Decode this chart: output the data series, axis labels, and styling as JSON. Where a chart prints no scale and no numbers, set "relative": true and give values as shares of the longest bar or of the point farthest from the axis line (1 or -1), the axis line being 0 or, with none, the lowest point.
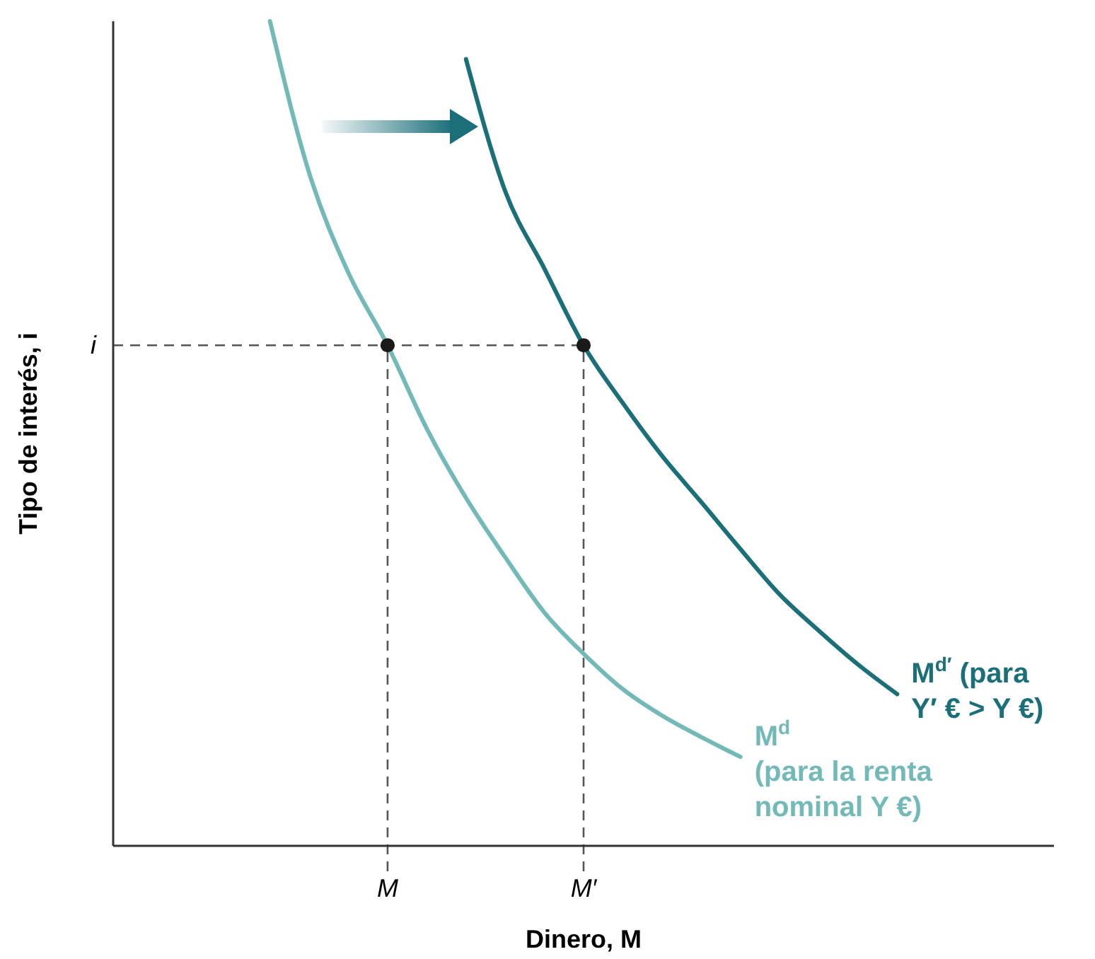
{
  "chart_data": {
    "type": "line",
    "relative": true,
    "xlabel": "Dinero, M",
    "ylabel": "Tipo de interés, i",
    "categories": [
      null,
      null,
      null,
      null,
      null,
      null,
      "M",
      null,
      null,
      null,
      null,
      "M′",
      null,
      null,
      null,
      null,
      null,
      null,
      null,
      null,
      null,
      null,
      null
    ],
    "series": [
      {
        "name": "M$^{d}$\n(para la renta\nnominal Y €)",
        "color": "#72b9b8",
        "values": [
          null,
          null,
          null,
          1.0,
          0.816,
          0.695,
          0.607,
          0.506,
          0.422,
          0.35,
          0.283,
          0.233,
          0.19,
          0.158,
          0.132,
          0.108,
          null,
          null,
          null,
          null,
          null,
          null,
          null
        ]
      },
      {
        "name": "M$^{d′}$ (para\nY′ € > Y €)",
        "color": "#1b6f79",
        "values": [
          null,
          null,
          null,
          null,
          null,
          null,
          null,
          null,
          0.954,
          0.794,
          0.7,
          0.607,
          0.537,
          0.473,
          0.417,
          0.36,
          0.305,
          0.261,
          0.22,
          0.184,
          null,
          null,
          null
        ]
      },
      {
        "type": "scatter",
        "marker": "circle",
        "color": "#1a1a1a",
        "x": [
          "M",
          "M′"
        ],
        "values": [
          0.607,
          0.607
        ]
      }
    ],
    "ref_lines": [
      {
        "axis": "y",
        "value": 0.607,
        "label": "i",
        "line_style": "dashed",
        "color": "#555555"
      },
      {
        "axis": "x",
        "value": "M",
        "line_style": "dashed",
        "color": "#555555"
      },
      {
        "axis": "x",
        "value": "M′",
        "line_style": "dashed",
        "color": "#555555"
      }
    ]
  }
}
